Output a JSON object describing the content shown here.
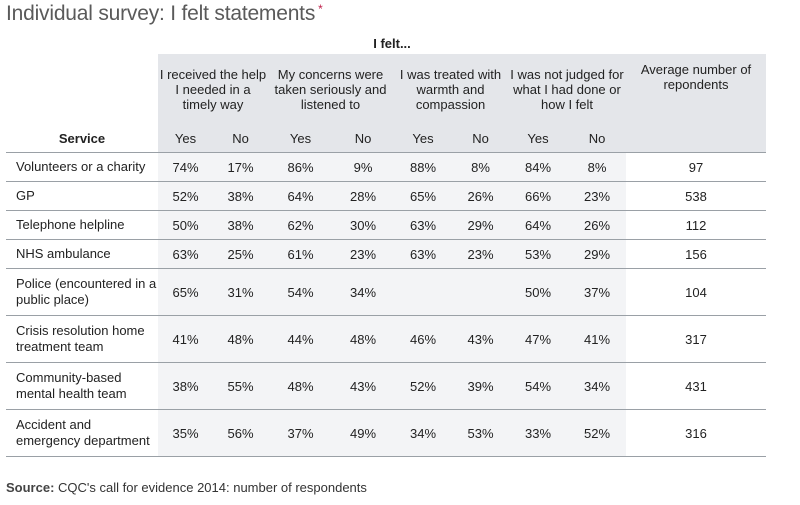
{
  "title": "Individual survey: I felt statements",
  "title_marker": "*",
  "group_header": "I felt...",
  "columns": [
    "I received the help I needed in a timely way",
    "My concerns were taken seriously and listened to",
    "I was treated with warmth and compassion",
    "I was not judged for what I had done or how I felt"
  ],
  "avg_header": "Average number of repondents",
  "service_header": "Service",
  "yes_label": "Yes",
  "no_label": "No",
  "rows": [
    {
      "service": "Volunteers or a charity",
      "cells": [
        "74%",
        "17%",
        "86%",
        "9%",
        "88%",
        "8%",
        "84%",
        "8%"
      ],
      "avg": "97"
    },
    {
      "service": "GP",
      "cells": [
        "52%",
        "38%",
        "64%",
        "28%",
        "65%",
        "26%",
        "66%",
        "23%"
      ],
      "avg": "538"
    },
    {
      "service": "Telephone helpline",
      "cells": [
        "50%",
        "38%",
        "62%",
        "30%",
        "63%",
        "29%",
        "64%",
        "26%"
      ],
      "avg": "112"
    },
    {
      "service": "NHS ambulance",
      "cells": [
        "63%",
        "25%",
        "61%",
        "23%",
        "63%",
        "23%",
        "53%",
        "29%"
      ],
      "avg": "156"
    },
    {
      "service": "Police (encountered in a public place)",
      "cells": [
        "65%",
        "31%",
        "54%",
        "34%",
        "",
        "",
        "50%",
        "37%"
      ],
      "avg": "104"
    },
    {
      "service": "Crisis resolution home treatment team",
      "cells": [
        "41%",
        "48%",
        "44%",
        "48%",
        "46%",
        "43%",
        "47%",
        "41%"
      ],
      "avg": "317"
    },
    {
      "service": "Community-based mental health team",
      "cells": [
        "38%",
        "55%",
        "48%",
        "43%",
        "52%",
        "39%",
        "54%",
        "34%"
      ],
      "avg": "431"
    },
    {
      "service": "Accident and emergency department",
      "cells": [
        "35%",
        "56%",
        "37%",
        "49%",
        "34%",
        "53%",
        "33%",
        "52%"
      ],
      "avg": "316"
    }
  ],
  "source_label": "Source:",
  "source_text": "CQC's call for evidence 2014: number of respondents"
}
